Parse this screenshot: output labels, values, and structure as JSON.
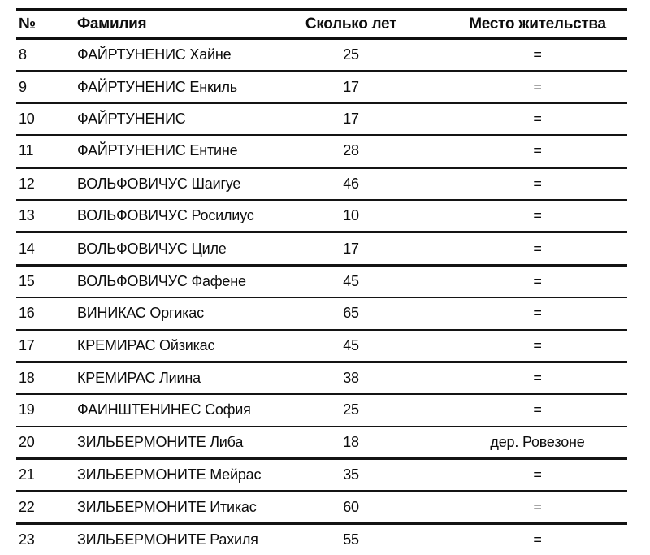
{
  "document": {
    "type": "scanned-register-table",
    "text_color": "#0d0d0d",
    "rule_color": "#0f0f0f",
    "background_color": "#ffffff"
  },
  "table": {
    "columns": [
      {
        "key": "num",
        "label": "№"
      },
      {
        "key": "surname",
        "label": "Фамилия"
      },
      {
        "key": "age",
        "label": "Сколько лет"
      },
      {
        "key": "residence",
        "label": "Место жительства"
      }
    ],
    "rows": [
      {
        "num": "8",
        "surname": "ФАЙРТУНЕНИС Хайне",
        "age": "25",
        "residence": "="
      },
      {
        "num": "9",
        "surname": "ФАЙРТУНЕНИС Енкиль",
        "age": "17",
        "residence": "="
      },
      {
        "num": "10",
        "surname": "ФАЙРТУНЕНИС",
        "age": "17",
        "residence": "="
      },
      {
        "num": "11",
        "surname": "ФАЙРТУНЕНИС Ентине",
        "age": "28",
        "residence": "="
      },
      {
        "num": "12",
        "surname": "ВОЛЬФОВИЧУС Шаигуе",
        "age": "46",
        "residence": "="
      },
      {
        "num": "13",
        "surname": "ВОЛЬФОВИЧУС Росилиус",
        "age": "10",
        "residence": "="
      },
      {
        "num": "14",
        "surname": "ВОЛЬФОВИЧУС Циле",
        "age": "17",
        "residence": "="
      },
      {
        "num": "15",
        "surname": "ВОЛЬФОВИЧУС Фафене",
        "age": "45",
        "residence": "="
      },
      {
        "num": "16",
        "surname": "ВИНИКАС Оргикас",
        "age": "65",
        "residence": "="
      },
      {
        "num": "17",
        "surname": "КРЕМИРАС Ойзикас",
        "age": "45",
        "residence": "="
      },
      {
        "num": "18",
        "surname": "КРЕМИРАС Лиина",
        "age": "38",
        "residence": "="
      },
      {
        "num": "19",
        "surname": "ФАИНШТЕНИНЕС София",
        "age": "25",
        "residence": "="
      },
      {
        "num": "20",
        "surname": "ЗИЛЬБЕРМОНИТЕ Либа",
        "age": "18",
        "residence": "дер. Ровезоне"
      },
      {
        "num": "21",
        "surname": "ЗИЛЬБЕРМОНИТЕ Мейрас",
        "age": "35",
        "residence": "="
      },
      {
        "num": "22",
        "surname": "ЗИЛЬБЕРМОНИТЕ Итикас",
        "age": "60",
        "residence": "="
      },
      {
        "num": "23",
        "surname": "ЗИЛЬБЕРМОНИТЕ Рахиля",
        "age": "55",
        "residence": "="
      }
    ]
  }
}
